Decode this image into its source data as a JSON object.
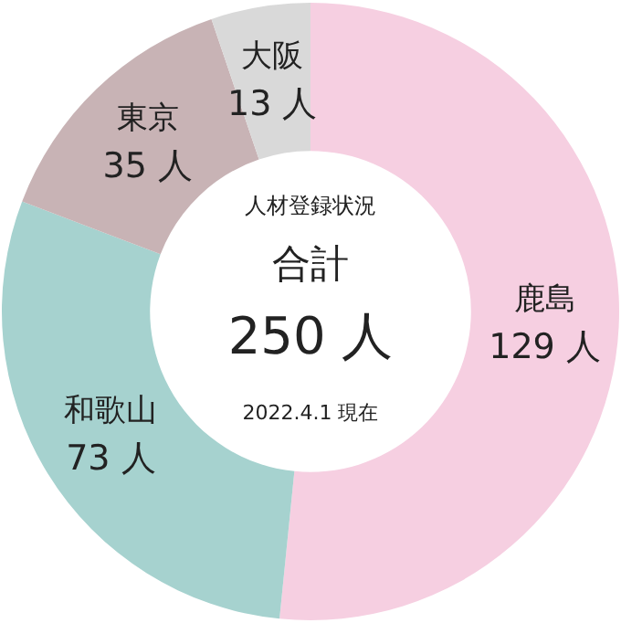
{
  "chart_data": {
    "type": "donut",
    "title": "人材登録状況",
    "categories": [
      "鹿島",
      "和歌山",
      "東京",
      "大阪"
    ],
    "values": [
      129,
      73,
      35,
      13
    ],
    "value_labels": [
      "129 人",
      "73 人",
      "35 人",
      "13 人"
    ],
    "colors": [
      "#f6cfe1",
      "#a6d2cf",
      "#c8b3b5",
      "#d9d9d9"
    ],
    "annotations": [
      "合計",
      "250 人",
      "2022.4.1 現在"
    ]
  }
}
